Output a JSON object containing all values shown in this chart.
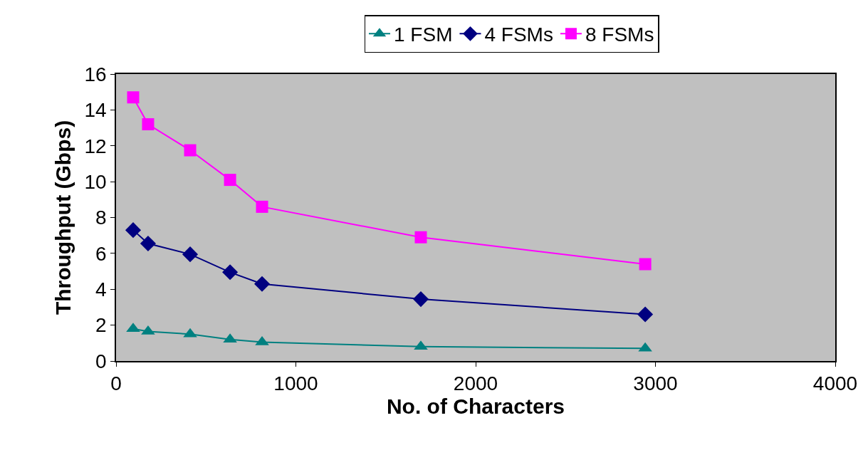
{
  "chart_data": {
    "type": "line",
    "xlabel": "No. of Characters",
    "ylabel": "Throughput (Gbps)",
    "xlim": [
      0,
      4000
    ],
    "xticks": [
      0,
      1000,
      2000,
      3000,
      4000
    ],
    "ylim": [
      0,
      16
    ],
    "yticks": [
      0,
      2,
      4,
      6,
      8,
      10,
      12,
      14,
      16
    ],
    "grid": false,
    "legend": "top",
    "line_style": "solid",
    "x": [
      95,
      178,
      412,
      634,
      812,
      1695,
      2943
    ],
    "series": [
      {
        "name": "1 FSM",
        "color": "#008080",
        "marker": "triangle",
        "values": [
          1.8,
          1.65,
          1.5,
          1.2,
          1.05,
          0.8,
          0.7
        ]
      },
      {
        "name": "4 FSMs",
        "color": "#000080",
        "marker": "diamond",
        "values": [
          7.3,
          6.55,
          5.95,
          4.95,
          4.3,
          3.45,
          2.6
        ]
      },
      {
        "name": "8 FSMs",
        "color": "#ff00ff",
        "marker": "square",
        "values": [
          14.7,
          13.2,
          11.75,
          10.1,
          8.6,
          6.9,
          5.4
        ]
      }
    ]
  }
}
